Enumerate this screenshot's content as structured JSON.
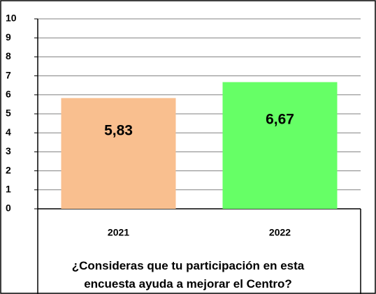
{
  "chart_data": {
    "type": "bar",
    "title": "¿Consideras que tu participación en esta encuesta ayuda a mejorar el Centro?",
    "categories": [
      "2021",
      "2022"
    ],
    "values": [
      5.83,
      6.67
    ],
    "value_labels": [
      "5,83",
      "6,67"
    ],
    "colors": [
      "#f9bf8f",
      "#66ff66"
    ],
    "ylim": [
      0,
      10
    ],
    "yticks": [
      0,
      1,
      2,
      3,
      4,
      5,
      6,
      7,
      8,
      9,
      10
    ],
    "grid": true
  }
}
